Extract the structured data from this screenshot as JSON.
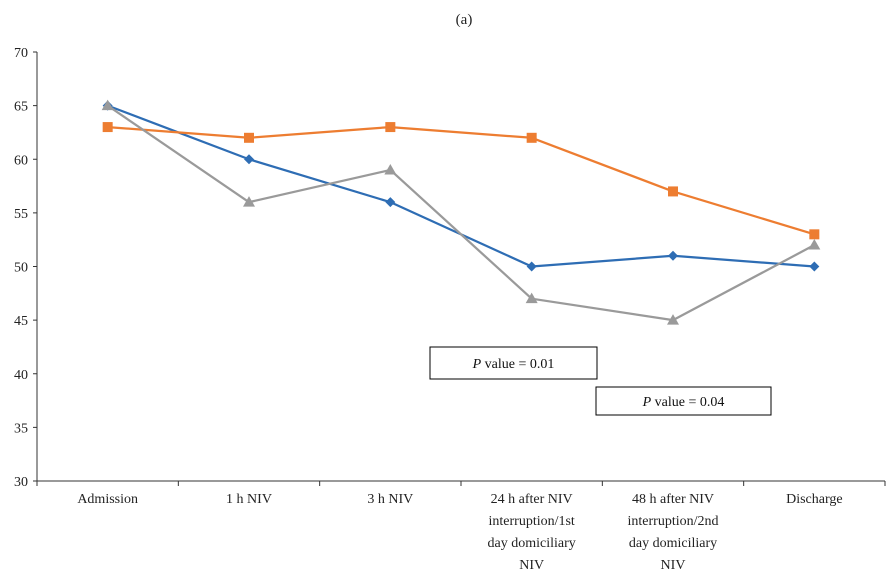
{
  "chart_data": {
    "type": "line",
    "title": "(a)",
    "categories": [
      [
        "Admission"
      ],
      [
        "1 h NIV"
      ],
      [
        "3 h NIV"
      ],
      [
        "24 h after NIV",
        "interruption/1st",
        "day domiciliary",
        "NIV"
      ],
      [
        "48 h after NIV",
        "interruption/2nd",
        "day domiciliary",
        "NIV"
      ],
      [
        "Discharge"
      ]
    ],
    "ylim": [
      30,
      70
    ],
    "yticks": [
      30,
      35,
      40,
      45,
      50,
      55,
      60,
      65,
      70
    ],
    "grid": false,
    "series": [
      {
        "color": "#2e6db4",
        "marker": "diamond",
        "values": [
          65,
          60,
          56,
          50,
          51,
          50
        ]
      },
      {
        "color": "#ed7d31",
        "marker": "square",
        "values": [
          63,
          62,
          63,
          62,
          57,
          53
        ]
      },
      {
        "color": "#9a9a9a",
        "marker": "triangle",
        "values": [
          65,
          56,
          59,
          47,
          45,
          52
        ]
      }
    ],
    "annotations": [
      {
        "italic": "P",
        "text": " value = 0.01"
      },
      {
        "italic": "P",
        "text": " value = 0.04"
      }
    ]
  }
}
